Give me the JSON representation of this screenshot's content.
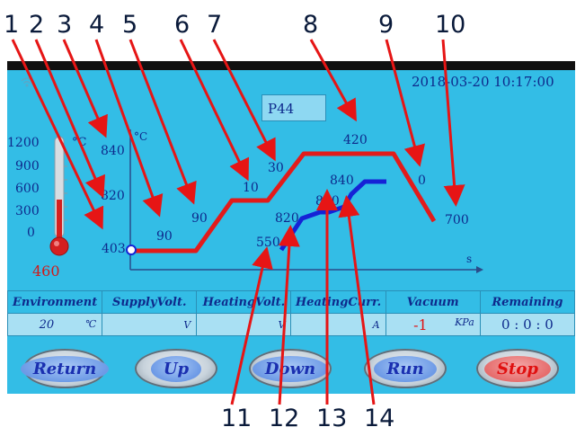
{
  "callouts": [
    "1",
    "2",
    "3",
    "4",
    "5",
    "6",
    "7",
    "8",
    "9",
    "10",
    "11",
    "12",
    "13",
    "14"
  ],
  "datetime": "2018-03-20 10:17:00",
  "program_label": "P44",
  "thermometer": {
    "scale": [
      "1200",
      "900",
      "600",
      "300",
      "0"
    ],
    "unit": "°C",
    "current_value": "460"
  },
  "chart": {
    "y_unit": "°C",
    "x_unit": "s",
    "profile_labels": {
      "t1": "403",
      "t2": "90",
      "t3": "90",
      "t4": "10",
      "t5": "30",
      "t6": "420",
      "t7": "0",
      "t8": "700",
      "t9": "840",
      "t10": "820"
    },
    "blue_labels": {
      "b1": "550",
      "b2": "820",
      "b3": "820",
      "b4": "840"
    }
  },
  "status": {
    "headers": [
      "Environment",
      "SupplyVolt.",
      "HeatingVolt.",
      "HeatingCurr.",
      "Vacuum",
      "Remaining"
    ],
    "env_value": "20",
    "env_unit": "℃",
    "supply_unit": "V",
    "heatvolt_unit": "V",
    "heatcurr_unit": "A",
    "vacuum_value": "-1",
    "vacuum_unit": "KPa",
    "remaining_value": "0 : 0 : 0"
  },
  "buttons": {
    "return": "Return",
    "up": "Up",
    "down": "Down",
    "run": "Run",
    "stop": "Stop"
  },
  "colors": {
    "screen_bg": "#33bde6",
    "profile_red": "#e21b1b",
    "actual_blue": "#1522d6"
  }
}
